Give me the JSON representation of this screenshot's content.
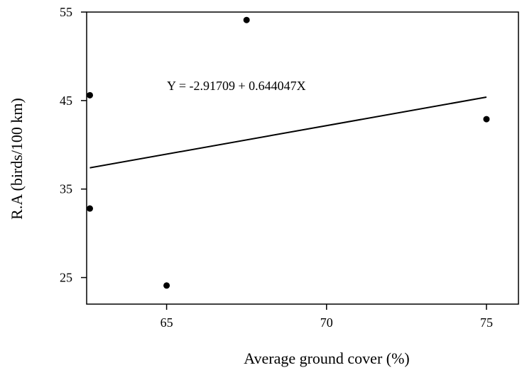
{
  "chart_data": {
    "type": "scatter",
    "xlabel": "Average ground cover (%)",
    "ylabel": "R.A (birds/100 km)",
    "xlim": [
      62.5,
      76.0
    ],
    "ylim": [
      22.0,
      55.0
    ],
    "x_ticks": [
      65,
      70,
      75
    ],
    "y_ticks": [
      25,
      35,
      45,
      55
    ],
    "grid": false,
    "points": [
      {
        "x": 62.6,
        "y": 45.6
      },
      {
        "x": 62.6,
        "y": 32.8
      },
      {
        "x": 65.0,
        "y": 24.1
      },
      {
        "x": 67.5,
        "y": 54.1
      },
      {
        "x": 75.0,
        "y": 42.9
      }
    ],
    "fit_line": {
      "x_start": 62.6,
      "x_end": 75.0,
      "intercept": -2.91709,
      "slope": 0.644047
    },
    "equation_text": "Y = -2.91709 + 0.644047X",
    "colors": {
      "axis": "#000000",
      "point": "#000000",
      "line": "#000000",
      "background": "#ffffff"
    }
  }
}
